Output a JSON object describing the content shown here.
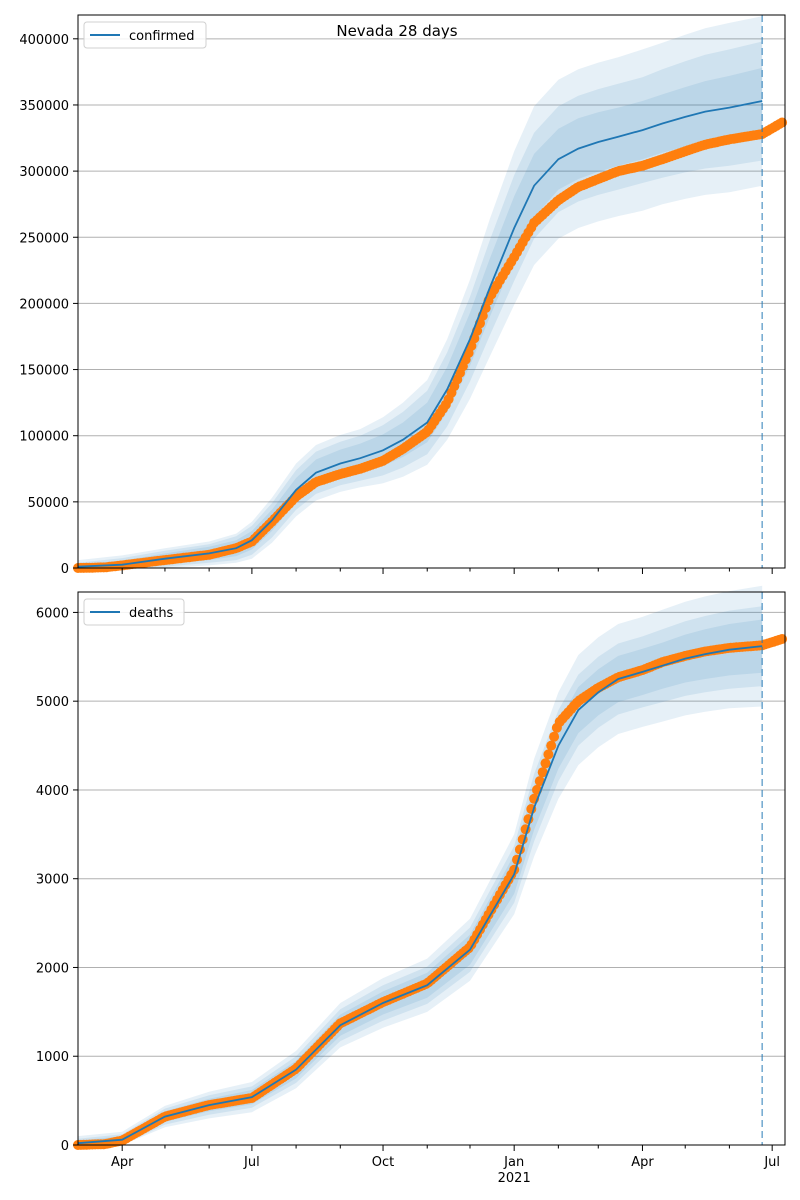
{
  "figure": {
    "title": "Nevada 28 days"
  },
  "colors": {
    "model_line": "#1f77b4",
    "band": "#1f77b4",
    "observed": "#ff7f0e",
    "grid": "#b0b0b0",
    "forecast_marker": "#1f77b4"
  },
  "chart_data": [
    {
      "type": "line",
      "legend": "confirmed",
      "legend_position": "top-left",
      "grid": "y-only",
      "x_range": [
        "2020-03-01",
        "2021-07-10"
      ],
      "ylim": [
        0,
        418000
      ],
      "yticks": [
        0,
        50000,
        100000,
        150000,
        200000,
        250000,
        300000,
        350000,
        400000
      ],
      "forecast_date": "2021-06-24",
      "model": {
        "x": [
          "2020-03-01",
          "2020-04-01",
          "2020-05-01",
          "2020-06-01",
          "2020-06-20",
          "2020-07-01",
          "2020-07-15",
          "2020-08-01",
          "2020-08-15",
          "2020-09-01",
          "2020-09-15",
          "2020-10-01",
          "2020-10-15",
          "2020-11-01",
          "2020-11-15",
          "2020-12-01",
          "2020-12-15",
          "2021-01-01",
          "2021-01-15",
          "2021-02-01",
          "2021-02-15",
          "2021-03-01",
          "2021-03-15",
          "2021-04-01",
          "2021-04-15",
          "2021-05-01",
          "2021-05-15",
          "2021-06-01",
          "2021-06-24"
        ],
        "y": [
          1000,
          2500,
          7000,
          11000,
          15000,
          21000,
          36000,
          59000,
          72000,
          79000,
          83000,
          89000,
          97000,
          110000,
          135000,
          173000,
          212000,
          257000,
          289000,
          309000,
          317000,
          322000,
          326000,
          331000,
          336000,
          341000,
          345000,
          348000,
          353000
        ],
        "band_half_widths": [
          [
            1500,
            3000,
            4000,
            5000,
            6000,
            7000,
            8000,
            9000,
            10000,
            10500,
            11000,
            12000,
            13000,
            15000,
            17000,
            20000,
            22000,
            24000,
            24000,
            23000,
            23000,
            22500,
            22000,
            22000,
            22000,
            22500,
            23000,
            24000,
            25000
          ],
          [
            3000,
            5000,
            6000,
            7000,
            9000,
            11000,
            13000,
            15000,
            16000,
            16500,
            17000,
            19000,
            21000,
            24000,
            28000,
            32000,
            36000,
            40000,
            40000,
            40000,
            40000,
            40000,
            40000,
            40000,
            41000,
            42000,
            43000,
            44000,
            45000
          ],
          [
            5000,
            7000,
            8000,
            9000,
            11000,
            14000,
            17000,
            20000,
            21000,
            21500,
            22000,
            25000,
            28000,
            32000,
            38000,
            45000,
            52000,
            58000,
            60000,
            60000,
            60000,
            60000,
            60000,
            61000,
            61000,
            62000,
            63000,
            64000,
            64000
          ]
        ]
      },
      "observed": {
        "x": [
          "2020-03-01",
          "2020-03-20",
          "2020-04-01",
          "2020-05-01",
          "2020-06-01",
          "2020-06-20",
          "2020-07-01",
          "2020-07-15",
          "2020-08-01",
          "2020-08-15",
          "2020-09-01",
          "2020-09-15",
          "2020-10-01",
          "2020-10-15",
          "2020-11-01",
          "2020-11-15",
          "2020-12-01",
          "2020-12-15",
          "2021-01-01",
          "2021-01-15",
          "2021-02-01",
          "2021-02-15",
          "2021-03-01",
          "2021-03-15",
          "2021-04-01",
          "2021-04-15",
          "2021-05-01",
          "2021-05-15",
          "2021-06-01",
          "2021-06-24",
          "2021-07-10"
        ],
        "y": [
          0,
          500,
          2000,
          6000,
          10000,
          15000,
          20000,
          35000,
          54000,
          65000,
          71000,
          75000,
          81000,
          90000,
          103000,
          125000,
          165000,
          205000,
          235000,
          261000,
          278000,
          288000,
          294000,
          300000,
          304000,
          309000,
          315000,
          320000,
          324000,
          328000,
          338000
        ]
      }
    },
    {
      "type": "line",
      "legend": "deaths",
      "legend_position": "top-left",
      "grid": "y-only",
      "x_range": [
        "2020-03-01",
        "2021-07-10"
      ],
      "ylim": [
        0,
        6230
      ],
      "yticks": [
        0,
        1000,
        2000,
        3000,
        4000,
        5000,
        6000
      ],
      "xticks": [
        {
          "date": "2020-04-01",
          "label": "Apr",
          "sub": ""
        },
        {
          "date": "2020-07-01",
          "label": "Jul",
          "sub": ""
        },
        {
          "date": "2020-10-01",
          "label": "Oct",
          "sub": ""
        },
        {
          "date": "2021-01-01",
          "label": "Jan",
          "sub": "2021"
        },
        {
          "date": "2021-04-01",
          "label": "Apr",
          "sub": ""
        },
        {
          "date": "2021-07-01",
          "label": "Jul",
          "sub": ""
        }
      ],
      "minor_ticks": [
        "2020-05-01",
        "2020-06-01",
        "2020-08-01",
        "2020-09-01",
        "2020-11-01",
        "2020-12-01",
        "2021-02-01",
        "2021-03-01",
        "2021-05-01",
        "2021-06-01"
      ],
      "forecast_date": "2021-06-24",
      "model": {
        "x": [
          "2020-03-01",
          "2020-04-01",
          "2020-05-01",
          "2020-06-01",
          "2020-07-01",
          "2020-08-01",
          "2020-09-01",
          "2020-10-01",
          "2020-11-01",
          "2020-12-01",
          "2021-01-01",
          "2021-01-15",
          "2021-02-01",
          "2021-02-15",
          "2021-03-01",
          "2021-03-15",
          "2021-04-01",
          "2021-04-15",
          "2021-05-01",
          "2021-05-15",
          "2021-06-01",
          "2021-06-24"
        ],
        "y": [
          20,
          60,
          320,
          450,
          540,
          850,
          1350,
          1600,
          1800,
          2200,
          3050,
          3800,
          4500,
          4900,
          5100,
          5250,
          5330,
          5400,
          5480,
          5530,
          5580,
          5620
        ],
        "band_half_widths": [
          [
            30,
            40,
            60,
            70,
            80,
            100,
            120,
            130,
            140,
            170,
            220,
            250,
            260,
            260,
            260,
            260,
            260,
            260,
            270,
            280,
            290,
            300
          ],
          [
            50,
            60,
            90,
            110,
            120,
            150,
            180,
            200,
            210,
            250,
            320,
            380,
            400,
            400,
            400,
            400,
            400,
            410,
            420,
            430,
            440,
            450
          ],
          [
            80,
            90,
            120,
            150,
            170,
            210,
            250,
            280,
            300,
            350,
            450,
            550,
            600,
            620,
            620,
            620,
            620,
            630,
            640,
            650,
            660,
            680
          ]
        ]
      },
      "observed": {
        "x": [
          "2020-03-01",
          "2020-03-20",
          "2020-04-01",
          "2020-05-01",
          "2020-06-01",
          "2020-07-01",
          "2020-08-01",
          "2020-09-01",
          "2020-10-01",
          "2020-11-01",
          "2020-12-01",
          "2021-01-01",
          "2021-01-15",
          "2021-02-01",
          "2021-02-15",
          "2021-03-01",
          "2021-03-15",
          "2021-04-01",
          "2021-04-15",
          "2021-05-01",
          "2021-05-15",
          "2021-06-01",
          "2021-06-24",
          "2021-07-10"
        ],
        "y": [
          0,
          10,
          50,
          320,
          450,
          530,
          860,
          1370,
          1610,
          1820,
          2230,
          3100,
          3900,
          4750,
          5000,
          5150,
          5270,
          5350,
          5440,
          5510,
          5560,
          5600,
          5630,
          5710
        ]
      }
    }
  ]
}
